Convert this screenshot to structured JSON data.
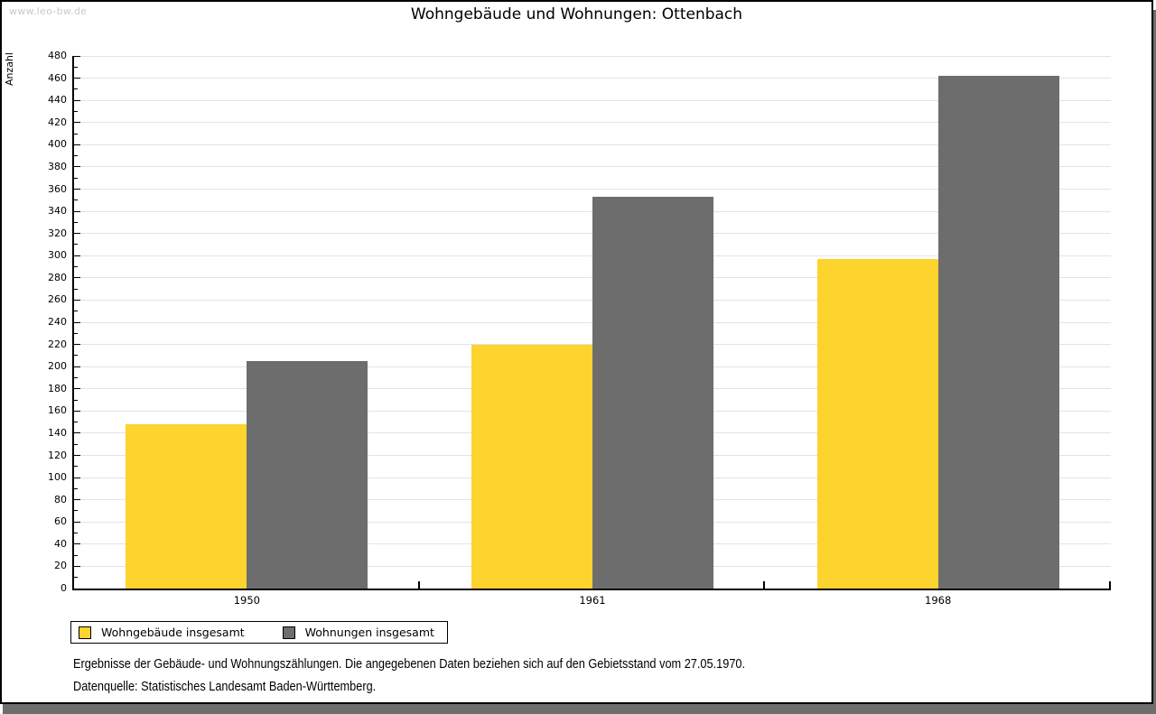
{
  "page": {
    "watermark": "www.leo-bw.de",
    "title": "Wohngebäude und Wohnungen: Ottenbach",
    "footnote_line1": "Ergebnisse der Gebäude- und Wohnungszählungen. Die angegebenen Daten beziehen sich auf den Gebietsstand vom 27.05.1970.",
    "footnote_line2": "Datenquelle: Statistisches Landesamt Baden-Württemberg."
  },
  "chart_data": {
    "type": "bar",
    "title": "Wohngebäude und Wohnungen: Ottenbach",
    "categories": [
      "1950",
      "1961",
      "1968"
    ],
    "series": [
      {
        "name": "Wohngebäude insgesamt",
        "color": "#fdd32e",
        "values": [
          148,
          220,
          297
        ]
      },
      {
        "name": "Wohnungen insgesamt",
        "color": "#6d6d6d",
        "values": [
          205,
          353,
          462
        ]
      }
    ],
    "xlabel": "",
    "ylabel": "Anzahl",
    "ylim": [
      0,
      480
    ],
    "ytick_step": 20,
    "yminor_step": 10,
    "grid": true,
    "legend_position": "bottom-left",
    "colors": {
      "gridline": "#e3e3e3",
      "axis": "#000000",
      "shadow": "#6e6e6e",
      "watermark_text": "#c9c9c9"
    }
  }
}
